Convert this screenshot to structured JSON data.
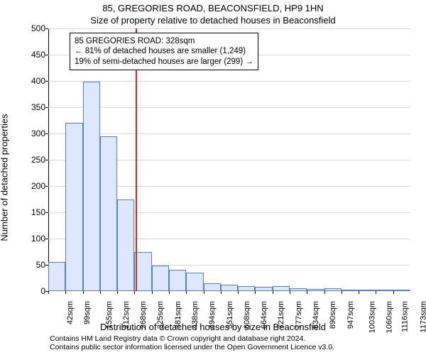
{
  "titles": {
    "line1": "85, GREGORIES ROAD, BEACONSFIELD, HP9 1HN",
    "line2": "Size of property relative to detached houses in Beaconsfield"
  },
  "ylabel": "Number of detached properties",
  "xlabel": "Distribution of detached houses by size in Beaconsfield",
  "footer": {
    "line1": "Contains HM Land Registry data © Crown copyright and database right 2024.",
    "line2": "Contains public sector information licensed under the Open Government Licence v3.0."
  },
  "chart": {
    "type": "histogram",
    "ylim": [
      0,
      500
    ],
    "ytick_step": 50,
    "grid_color": "#d9d9d9",
    "bar_fill": "#dce8fb",
    "bar_stroke": "#5a7fc0",
    "background_color": "#ffffff",
    "refline_color": "#d92424",
    "refline_x_index": 5.05,
    "bar_gap_ratio": 0.0,
    "xticks": [
      "42sqm",
      "99sqm",
      "155sqm",
      "212sqm",
      "268sqm",
      "325sqm",
      "381sqm",
      "438sqm",
      "494sqm",
      "551sqm",
      "608sqm",
      "664sqm",
      "721sqm",
      "777sqm",
      "834sqm",
      "890sqm",
      "947sqm",
      "1003sqm",
      "1060sqm",
      "1116sqm",
      "1173sqm"
    ],
    "values": [
      55,
      320,
      398,
      295,
      175,
      75,
      48,
      40,
      35,
      15,
      12,
      10,
      8,
      10,
      6,
      4,
      5,
      3,
      3,
      2,
      3
    ],
    "label_fontsize": 13,
    "tick_fontsize": 11
  },
  "annotation": {
    "lines": [
      "85 GREGORIES ROAD: 328sqm",
      "← 81% of detached houses are smaller (1,249)",
      "19% of semi-detached houses are larger (299) →"
    ]
  }
}
